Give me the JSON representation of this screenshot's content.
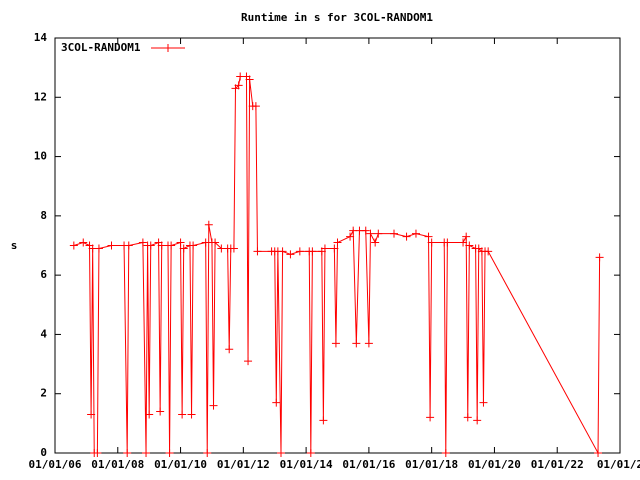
{
  "chart_data": {
    "type": "line",
    "title": "Runtime in s for 3COL-RANDOM1",
    "y_label": "s",
    "xlim": [
      2006,
      2024
    ],
    "ylim": [
      0,
      14
    ],
    "xticks": [
      {
        "value": 2006,
        "label": "01/01/06"
      },
      {
        "value": 2008,
        "label": "01/01/08"
      },
      {
        "value": 2010,
        "label": "01/01/10"
      },
      {
        "value": 2012,
        "label": "01/01/12"
      },
      {
        "value": 2014,
        "label": "01/01/14"
      },
      {
        "value": 2016,
        "label": "01/01/16"
      },
      {
        "value": 2018,
        "label": "01/01/18"
      },
      {
        "value": 2020,
        "label": "01/01/20"
      },
      {
        "value": 2022,
        "label": "01/01/22"
      },
      {
        "value": 2024,
        "label": "01/01/2"
      }
    ],
    "yticks": [
      0,
      2,
      4,
      6,
      8,
      10,
      12,
      14
    ],
    "legend": "top-left",
    "series": [
      {
        "name": "3COL-RANDOM1",
        "color": "#ff0000",
        "x": [
          2006.6,
          2006.9,
          2007.1,
          2007.15,
          2007.2,
          2007.25,
          2007.35,
          2007.4,
          2007.8,
          2008.2,
          2008.3,
          2008.35,
          2008.8,
          2008.9,
          2008.95,
          2009.0,
          2009.05,
          2009.3,
          2009.35,
          2009.4,
          2009.6,
          2009.65,
          2009.7,
          2010.0,
          2010.05,
          2010.1,
          2010.3,
          2010.35,
          2010.4,
          2010.8,
          2010.85,
          2010.9,
          2011.0,
          2011.05,
          2011.1,
          2011.3,
          2011.5,
          2011.55,
          2011.6,
          2011.7,
          2011.75,
          2011.85,
          2011.9,
          2012.1,
          2012.15,
          2012.2,
          2012.3,
          2012.4,
          2012.45,
          2012.9,
          2013.0,
          2013.05,
          2013.1,
          2013.2,
          2013.25,
          2013.5,
          2013.8,
          2014.1,
          2014.15,
          2014.2,
          2014.5,
          2014.55,
          2014.6,
          2014.9,
          2014.95,
          2015.0,
          2015.4,
          2015.5,
          2015.6,
          2015.7,
          2015.9,
          2016.0,
          2016.05,
          2016.2,
          2016.3,
          2016.8,
          2017.2,
          2017.5,
          2017.9,
          2017.95,
          2018.0,
          2018.4,
          2018.45,
          2018.5,
          2019.0,
          2019.1,
          2019.15,
          2019.2,
          2019.4,
          2019.45,
          2019.5,
          2019.6,
          2019.65,
          2019.7,
          2019.8,
          2023.3,
          2023.35
        ],
        "values": [
          7.0,
          7.1,
          7.0,
          1.3,
          6.9,
          0,
          0,
          6.9,
          7.0,
          7.0,
          0,
          7.0,
          7.1,
          0,
          7.0,
          1.3,
          7.0,
          7.1,
          1.4,
          7.0,
          7.0,
          0,
          7.0,
          7.1,
          1.3,
          6.9,
          7.0,
          1.3,
          7.0,
          7.1,
          0,
          7.7,
          7.1,
          1.6,
          7.1,
          6.9,
          6.9,
          3.5,
          6.9,
          6.9,
          12.3,
          12.4,
          12.7,
          12.7,
          3.1,
          12.6,
          11.7,
          11.7,
          6.8,
          6.8,
          6.8,
          1.7,
          6.8,
          0,
          6.8,
          6.7,
          6.8,
          6.8,
          0,
          6.8,
          6.8,
          1.1,
          6.9,
          6.9,
          3.7,
          7.1,
          7.3,
          7.5,
          3.7,
          7.5,
          7.5,
          3.7,
          7.4,
          7.1,
          7.4,
          7.4,
          7.3,
          7.4,
          7.3,
          1.2,
          7.1,
          7.1,
          0,
          7.1,
          7.1,
          7.3,
          1.2,
          7.0,
          6.9,
          1.1,
          6.9,
          6.8,
          1.7,
          6.8,
          6.8,
          0,
          6.6
        ]
      }
    ]
  }
}
